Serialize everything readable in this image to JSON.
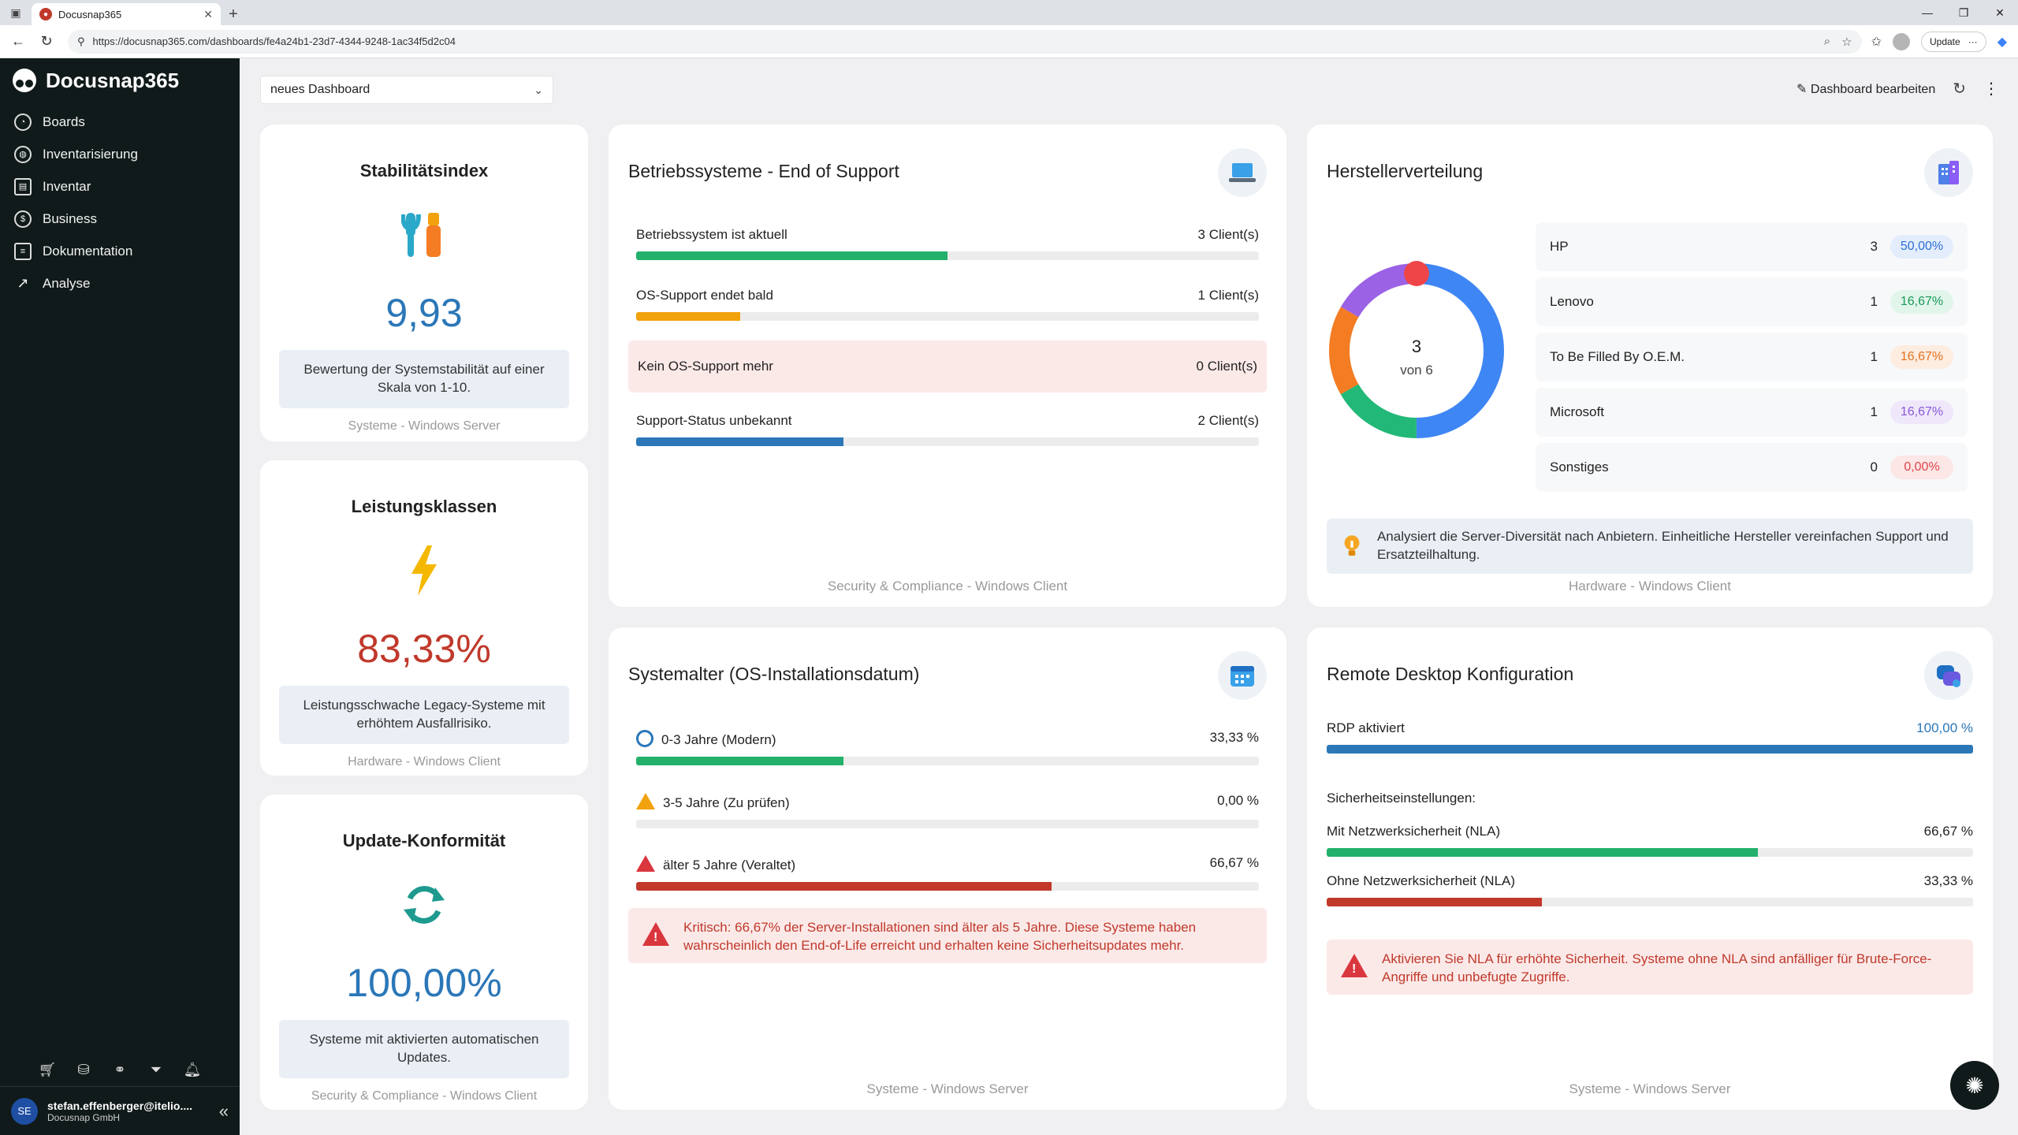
{
  "browser": {
    "tab_title": "Docusnap365",
    "url": "https://docusnap365.com/dashboards/fe4a24b1-23d7-4344-9248-1ac34f5d2c04",
    "update_label": "Update"
  },
  "sidebar": {
    "brand": "Docusnap365",
    "items": [
      {
        "label": "Boards",
        "icon": "gauge-icon"
      },
      {
        "label": "Inventarisierung",
        "icon": "globe-icon"
      },
      {
        "label": "Inventar",
        "icon": "inventory-icon"
      },
      {
        "label": "Business",
        "icon": "business-icon"
      },
      {
        "label": "Dokumentation",
        "icon": "document-icon"
      },
      {
        "label": "Analyse",
        "icon": "chart-line-icon"
      }
    ],
    "user": {
      "initials": "SE",
      "email": "stefan.effenberger@itelio....",
      "company": "Docusnap GmbH"
    }
  },
  "toolbar": {
    "dashboard_select": "neues Dashboard",
    "edit_label": "Dashboard bearbeiten"
  },
  "stability": {
    "title": "Stabilitätsindex",
    "value": "9,93",
    "desc": "Bewertung der Systemstabilität auf einer Skala von 1-10.",
    "footer": "Systeme - Windows Server"
  },
  "performance": {
    "title": "Leistungsklassen",
    "value": "83,33%",
    "desc": "Leistungsschwache Legacy-Systeme mit erhöhtem Ausfallrisiko.",
    "footer": "Hardware - Windows Client"
  },
  "update": {
    "title": "Update-Konformität",
    "value": "100,00%",
    "desc": "Systeme mit aktivierten automatischen Updates.",
    "footer": "Security & Compliance - Windows Client"
  },
  "os_eos": {
    "title": "Betriebssysteme - End of Support",
    "rows": [
      {
        "label": "Betriebssystem ist aktuell",
        "value": "3 Client(s)",
        "fraction": 0.5,
        "color": "#22b06b"
      },
      {
        "label": "OS-Support endet bald",
        "value": "1 Client(s)",
        "fraction": 0.1667,
        "color": "#f2a20c"
      },
      {
        "label": "Kein OS-Support mehr",
        "value": "0 Client(s)",
        "fraction": 0,
        "color": "#d9363e"
      },
      {
        "label": "Support-Status unbekannt",
        "value": "2 Client(s)",
        "fraction": 0.3333,
        "color": "#2b77b8"
      }
    ],
    "footer": "Security & Compliance - Windows Client"
  },
  "vendors": {
    "title": "Herstellerverteilung",
    "donut_value": "3",
    "donut_sub": "von 6",
    "rows": [
      {
        "name": "HP",
        "count": "3",
        "pct": "50,00%",
        "pct_color": "#2f6fd6",
        "pill_bg": "#e3edfb",
        "share": 0.5,
        "color": "#3f86f5"
      },
      {
        "name": "Lenovo",
        "count": "1",
        "pct": "16,67%",
        "pct_color": "#1a9a5a",
        "pill_bg": "#e1f5ea",
        "share": 0.1667,
        "color": "#22b877"
      },
      {
        "name": "To Be Filled By O.E.M.",
        "count": "1",
        "pct": "16,67%",
        "pct_color": "#e2731e",
        "pill_bg": "#fdece0",
        "share": 0.1667,
        "color": "#f47c22"
      },
      {
        "name": "Microsoft",
        "count": "1",
        "pct": "16,67%",
        "pct_color": "#8a58d8",
        "pill_bg": "#efe8fb",
        "share": 0.1667,
        "color": "#9b62e6"
      },
      {
        "name": "Sonstiges",
        "count": "0",
        "pct": "0,00%",
        "pct_color": "#e0454a",
        "pill_bg": "#fce6e6",
        "share": 0,
        "color": "#ef4448"
      }
    ],
    "info": "Analysiert die Server-Diversität nach Anbietern. Einheitliche Hersteller vereinfachen Support und Ersatzteilhaltung.",
    "footer": "Hardware - Windows Client"
  },
  "sysage": {
    "title": "Systemalter (OS-Installationsdatum)",
    "rows": [
      {
        "label": "0-3 Jahre (Modern)",
        "value": "33,33 %",
        "fraction": 0.3333,
        "color": "#22b06b",
        "icon": "clock-icon"
      },
      {
        "label": "3-5 Jahre (Zu prüfen)",
        "value": "0,00 %",
        "fraction": 0,
        "color": "#f2a20c",
        "icon": "warning-icon"
      },
      {
        "label": "älter 5 Jahre (Veraltet)",
        "value": "66,67 %",
        "fraction": 0.6667,
        "color": "#c0392b",
        "icon": "alert-icon"
      }
    ],
    "alert": "Kritisch: 66,67% der Server-Installationen sind älter als 5 Jahre. Diese Systeme haben wahrscheinlich den End-of-Life erreicht und erhalten keine Sicherheitsupdates mehr.",
    "footer": "Systeme - Windows Server"
  },
  "rdp": {
    "title": "Remote Desktop Konfiguration",
    "enabled_label": "RDP aktiviert",
    "enabled_value": "100,00 %",
    "enabled_fraction": 1.0,
    "section_label": "Sicherheitseinstellungen:",
    "rows": [
      {
        "label": "Mit Netzwerksicherheit (NLA)",
        "value": "66,67 %",
        "fraction": 0.6667,
        "color": "#22b06b"
      },
      {
        "label": "Ohne Netzwerksicherheit (NLA)",
        "value": "33,33 %",
        "fraction": 0.3333,
        "color": "#c0392b"
      }
    ],
    "alert": "Aktivieren Sie NLA für erhöhte Sicherheit. Systeme ohne NLA sind anfälliger für Brute-Force-Angriffe und unbefugte Zugriffe.",
    "footer": "Systeme - Windows Server"
  }
}
